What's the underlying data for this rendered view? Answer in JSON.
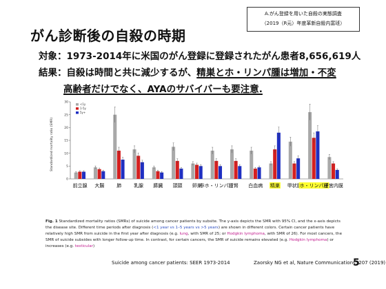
{
  "slide": {
    "source_box": {
      "line1": "A.がん登録を用いた自殺の実態調査",
      "line2": "（2019（R元）年度革新自殺内富班）"
    },
    "title": "がん診断後の自殺の時期",
    "target": "対象：1973-2014年に米国のがん登録に登録されたがん患者8,656,619人",
    "result": {
      "prefix": "結果：自殺は時間と共に減少するが、",
      "underlined": "精巣とホ・リンパ腫は増加・不変",
      "line2": "高齢者だけでなく、AYAのサバイバーも要注意."
    },
    "caption": {
      "fig": "Fig. 1",
      "text1": " Standardized mortality ratios (SMRs) of suicide among cancer patients by subsite. The y-axis depicts the SMR with 95% CI, and the x-axis depicts the disease site. Different time periods after diagnosis (",
      "highlight1": "<1 year vs 1–5 years vs >5 years",
      "text2": ") are shown in different colors. Certain cancer patients have relatively high SMR from suicide in the first year after diagnosis (e.g. ",
      "highlight2": "lung",
      "text3": ", with SMR of 25; or ",
      "highlight3": "Hodgkin lymphoma",
      "text4": ", with SMR of 26). For most cancers, the SMR of suicide subsides with longer follow-up time. In contrast, for certain cancers, the SMR of suicide remains elevated (e.g. ",
      "highlight4": "Hodgkin lymphoma",
      "text5": ") or increases (e.g. ",
      "highlight5": "testicular",
      "text6": ")"
    },
    "footer_left": "Suicide among cancer patients: SEER 1973-2014",
    "footer_right": "Zaorsky NG et al, Nature Communications: 207 (2019)",
    "page_number": "5"
  },
  "chart_data": {
    "type": "bar",
    "ylabel": "Standardized mortality ratio (SMR)",
    "ylim": [
      0,
      30
    ],
    "yticks": [
      0,
      5,
      10,
      15,
      20,
      25,
      30
    ],
    "grid": false,
    "legend_position": "top-left",
    "categories": [
      "前立腺",
      "大腸",
      "肺",
      "乳腺",
      "膵臓",
      "頭頸",
      "卵巣",
      "非ホ・リンパ腫",
      "腎",
      "白血病",
      "精巣",
      "甲状腺",
      "ホ・リンパ腫",
      "子宮内膜"
    ],
    "highlighted_categories": [
      "精巣",
      "ホ・リンパ腫"
    ],
    "series": [
      {
        "name": "<1y",
        "color": "#a9a9a9",
        "values": [
          2.5,
          4.5,
          25,
          11.5,
          4.5,
          12.5,
          6,
          11,
          11.5,
          11,
          6,
          14.5,
          26,
          8.5
        ]
      },
      {
        "name": "1-5y",
        "color": "#d42020",
        "values": [
          2.8,
          3.8,
          11,
          9,
          3,
          7,
          5.5,
          7,
          7,
          4,
          11.5,
          6,
          16,
          6
        ]
      },
      {
        "name": "5y+",
        "color": "#1f2fc2",
        "values": [
          2.8,
          3,
          7.5,
          6.5,
          2.5,
          4,
          5,
          5,
          5,
          4.5,
          18,
          8,
          18.5,
          3.5
        ]
      }
    ]
  }
}
